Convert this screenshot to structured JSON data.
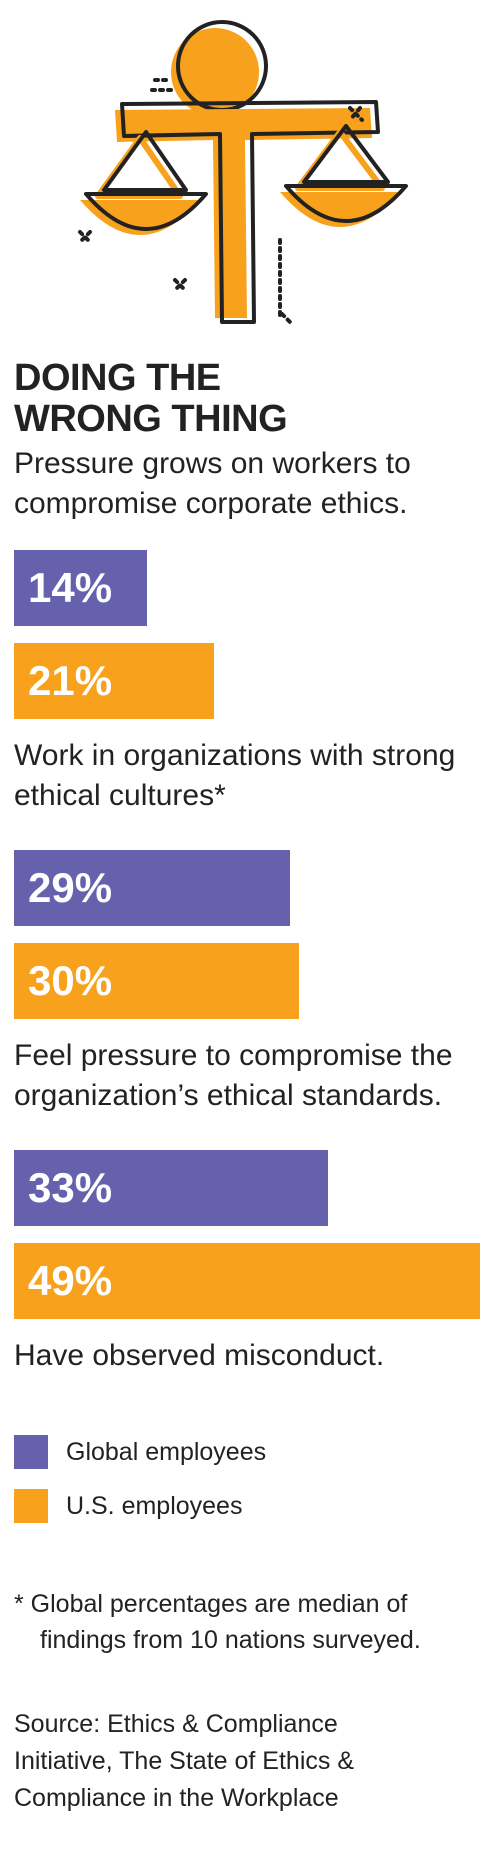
{
  "chart_data": {
    "type": "bar",
    "orientation": "horizontal",
    "title": "DOING THE WRONG THING",
    "subtitle": "Pressure grows on workers to compromise corporate ethics.",
    "categories": [
      "Work in organizations with strong ethical cultures*",
      "Feel pressure to compromise the organization’s ethical standards.",
      "Have observed misconduct."
    ],
    "series": [
      {
        "name": "Global employees",
        "color": "#6561ad",
        "values": [
          14,
          29,
          33
        ],
        "value_labels": [
          "14%",
          "29%",
          "33%"
        ]
      },
      {
        "name": "U.S. employees",
        "color": "#f7a11c",
        "values": [
          21,
          30,
          49
        ],
        "value_labels": [
          "21%",
          "30%",
          "49%"
        ]
      }
    ],
    "footnote": "* Global percentages are median of findings from 10 nations surveyed.",
    "source": "Source: Ethics & Compliance Initiative, The State of Ethics & Compliance in the Workplace"
  }
}
